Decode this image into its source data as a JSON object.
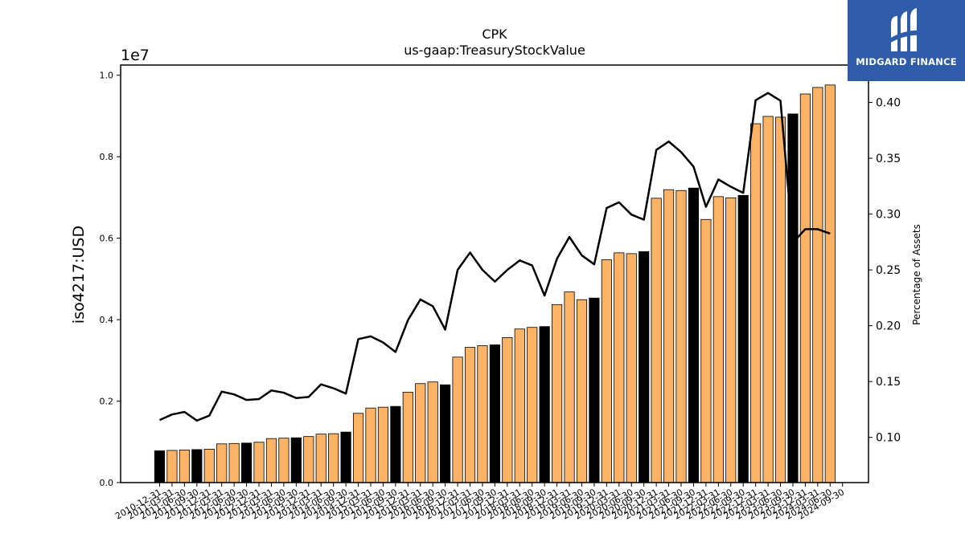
{
  "chart_data": {
    "type": "bar",
    "title": "CPK",
    "subtitle": "us-gaap:TreasuryStockValue",
    "ylabel": "iso4217:USD",
    "y_offset_label": "1e7",
    "y2label": "Percentage of Assets",
    "ylim": [
      0,
      10250000
    ],
    "y2lim": [
      0.0595,
      0.4335
    ],
    "yticks": [
      0,
      2000000,
      4000000,
      6000000,
      8000000,
      10000000
    ],
    "ytick_labels": [
      "0.0",
      "0.2",
      "0.4",
      "0.6",
      "0.8",
      "1.0"
    ],
    "y2ticks": [
      0.1,
      0.15,
      0.2,
      0.25,
      0.3,
      0.35,
      0.4
    ],
    "y2tick_labels": [
      "0.10",
      "0.15",
      "0.20",
      "0.25",
      "0.30",
      "0.35",
      "0.40"
    ],
    "grid": false,
    "colors": {
      "annual_bar": "#000000",
      "quarter_bar": "#fdb366",
      "line": "#000000"
    },
    "categories": [
      "2010-12-31",
      "2011-03-31",
      "2011-06-30",
      "2011-09-30",
      "2011-12-31",
      "2012-03-31",
      "2012-06-30",
      "2012-09-30",
      "2012-12-31",
      "2013-03-31",
      "2013-06-30",
      "2013-09-30",
      "2013-12-31",
      "2014-03-31",
      "2014-06-30",
      "2014-09-30",
      "2014-12-31",
      "2015-03-31",
      "2015-06-30",
      "2015-09-30",
      "2015-12-31",
      "2016-03-31",
      "2016-06-30",
      "2016-09-30",
      "2016-12-31",
      "2017-03-31",
      "2017-06-30",
      "2017-09-30",
      "2017-12-31",
      "2018-03-31",
      "2018-06-30",
      "2018-09-30",
      "2018-12-31",
      "2019-03-31",
      "2019-06-30",
      "2019-09-30",
      "2019-12-31",
      "2020-03-31",
      "2020-06-30",
      "2020-09-30",
      "2020-12-31",
      "2021-03-31",
      "2021-06-30",
      "2021-09-30",
      "2021-12-31",
      "2022-03-31",
      "2022-06-30",
      "2022-09-30",
      "2022-12-31",
      "2023-03-31",
      "2023-06-30",
      "2023-09-30",
      "2023-12-31",
      "2024-03-31",
      "2024-06-30",
      "2024-09-30"
    ],
    "series": [
      {
        "kind": "bar",
        "axis": "left",
        "values": [
          780000,
          790000,
          800000,
          810000,
          820000,
          950000,
          960000,
          970000,
          990000,
          1080000,
          1090000,
          1100000,
          1130000,
          1190000,
          1200000,
          1240000,
          1700000,
          1830000,
          1850000,
          1870000,
          2220000,
          2430000,
          2470000,
          2400000,
          3080000,
          3320000,
          3360000,
          3380000,
          3560000,
          3770000,
          3810000,
          3830000,
          4370000,
          4680000,
          4490000,
          4530000,
          5470000,
          5640000,
          5620000,
          5670000,
          6980000,
          7190000,
          7170000,
          7230000,
          6460000,
          7020000,
          6990000,
          7050000,
          8810000,
          8990000,
          8970000,
          9050000,
          9540000,
          9700000,
          9760000,
          null
        ],
        "annual": [
          true,
          false,
          false,
          true,
          false,
          false,
          false,
          true,
          false,
          false,
          false,
          true,
          false,
          false,
          false,
          true,
          false,
          false,
          false,
          true,
          false,
          false,
          false,
          true,
          false,
          false,
          false,
          true,
          false,
          false,
          false,
          true,
          false,
          false,
          false,
          true,
          false,
          false,
          false,
          true,
          false,
          false,
          false,
          true,
          false,
          false,
          false,
          true,
          false,
          false,
          false,
          true,
          false,
          false,
          false,
          false
        ]
      },
      {
        "kind": "line",
        "axis": "right",
        "name": "Percentage of Assets",
        "values": [
          0.1155,
          0.1205,
          0.1228,
          0.115,
          0.1195,
          0.141,
          0.1385,
          0.1335,
          0.1343,
          0.142,
          0.14,
          0.1352,
          0.1362,
          0.1475,
          0.144,
          0.1392,
          0.188,
          0.1905,
          0.185,
          0.1765,
          0.205,
          0.2235,
          0.2175,
          0.1965,
          0.25,
          0.2655,
          0.25,
          0.2395,
          0.25,
          0.2585,
          0.254,
          0.227,
          0.26,
          0.2795,
          0.263,
          0.255,
          0.3055,
          0.3105,
          0.2995,
          0.295,
          0.3575,
          0.365,
          0.3555,
          0.3425,
          0.3065,
          0.331,
          0.3245,
          0.319,
          0.402,
          0.4085,
          0.4015,
          0.2745,
          0.2865,
          0.2865,
          0.2825,
          null
        ]
      }
    ]
  },
  "logo": {
    "name": "MIDGARD FINANCE"
  }
}
